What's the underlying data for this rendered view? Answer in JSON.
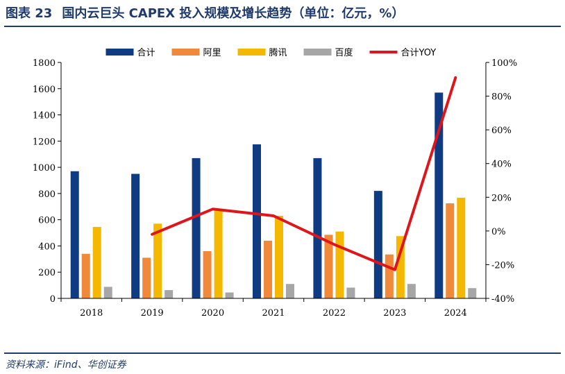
{
  "header": {
    "figure_label": "图表 23",
    "title": "国内云巨头 CAPEX 投入规模及增长趋势（单位：亿元，%）"
  },
  "footer": {
    "source": "资料来源：iFind、华创证券"
  },
  "colors": {
    "title": "#1f3a6b",
    "total": "#0e3b82",
    "alibaba": "#f08a3a",
    "tencent": "#f5b800",
    "baidu": "#a6a6a6",
    "yoy": "#e0151b"
  },
  "chart_data": {
    "type": "bar",
    "categories": [
      "2018",
      "2019",
      "2020",
      "2021",
      "2022",
      "2023",
      "2024"
    ],
    "series": [
      {
        "name": "合计",
        "type": "bar",
        "axis": "left",
        "color": "#0e3b82",
        "values": [
          970,
          950,
          1070,
          1175,
          1070,
          820,
          1570
        ]
      },
      {
        "name": "阿里",
        "type": "bar",
        "axis": "left",
        "color": "#f08a3a",
        "values": [
          340,
          310,
          360,
          440,
          485,
          335,
          725
        ]
      },
      {
        "name": "腾讯",
        "type": "bar",
        "axis": "left",
        "color": "#f5b800",
        "values": [
          545,
          570,
          685,
          630,
          510,
          475,
          768
        ]
      },
      {
        "name": "百度",
        "type": "bar",
        "axis": "left",
        "color": "#a6a6a6",
        "values": [
          88,
          63,
          45,
          110,
          82,
          110,
          78
        ]
      },
      {
        "name": "合计YOY",
        "type": "line",
        "axis": "right",
        "color": "#e0151b",
        "values": [
          null,
          -2,
          13,
          9,
          -8,
          -23,
          91
        ]
      }
    ],
    "ylim_left": [
      0,
      1800
    ],
    "yticks_left": [
      0,
      200,
      400,
      600,
      800,
      1000,
      1200,
      1400,
      1600,
      1800
    ],
    "ylim_right": [
      -40,
      100
    ],
    "yticks_right": [
      "-40%",
      "-20%",
      "0%",
      "20%",
      "40%",
      "60%",
      "80%",
      "100%"
    ],
    "grid": false,
    "legend": "top-center"
  }
}
